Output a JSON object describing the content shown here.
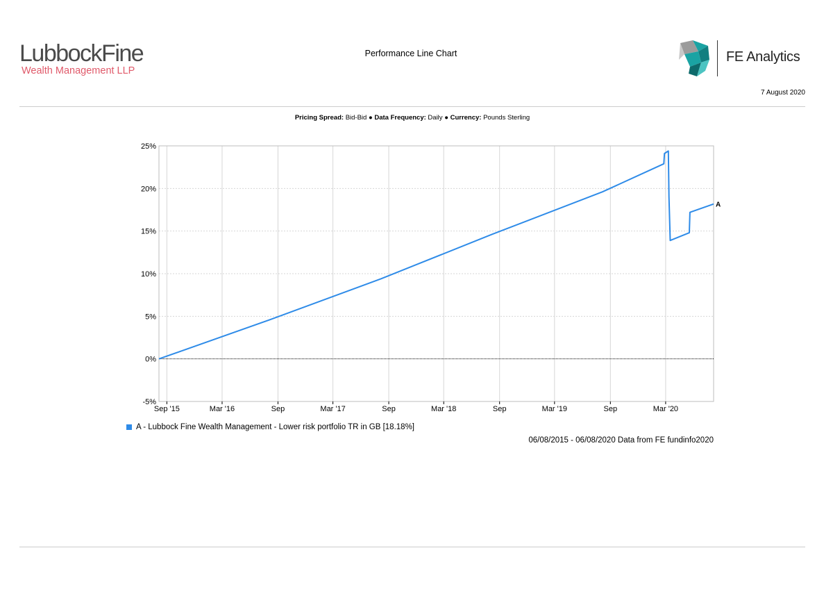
{
  "header": {
    "brand_main": "LubbockFine",
    "brand_sub": "Wealth Management LLP",
    "page_title": "Performance Line Chart",
    "provider": "FE Analytics",
    "date": "7 August 2020"
  },
  "meta": {
    "pricing_spread_label": "Pricing Spread:",
    "pricing_spread_value": "Bid-Bid",
    "data_frequency_label": "Data Frequency:",
    "data_frequency_value": "Daily",
    "currency_label": "Currency:",
    "currency_value": "Pounds Sterling",
    "separator": "●"
  },
  "legend": {
    "label": "A - Lubbock Fine Wealth Management - Lower risk portfolio TR in GB [18.18%]"
  },
  "source": "06/08/2015 - 06/08/2020 Data from FE fundinfo2020",
  "colors": {
    "series": "#2e8be8",
    "brand_red": "#e05a6a",
    "fe_teal": "#1aa3a3"
  },
  "chart_data": {
    "type": "line",
    "title": "",
    "xlabel": "",
    "ylabel": "",
    "ylim": [
      -5,
      25
    ],
    "xlim": [
      "2015-08-06",
      "2020-08-06"
    ],
    "yticks": [
      "25%",
      "20%",
      "15%",
      "10%",
      "5%",
      "0%",
      "-5%"
    ],
    "ytick_values": [
      25,
      20,
      15,
      10,
      5,
      0,
      -5
    ],
    "xticks": [
      {
        "label": "Sep '15",
        "date": "2015-09-01"
      },
      {
        "label": "Mar '16",
        "date": "2016-03-01"
      },
      {
        "label": "Sep",
        "date": "2016-09-01"
      },
      {
        "label": "Mar '17",
        "date": "2017-03-01"
      },
      {
        "label": "Sep",
        "date": "2017-09-01"
      },
      {
        "label": "Mar '18",
        "date": "2018-03-01"
      },
      {
        "label": "Sep",
        "date": "2018-09-01"
      },
      {
        "label": "Mar '19",
        "date": "2019-03-01"
      },
      {
        "label": "Sep",
        "date": "2019-09-01"
      },
      {
        "label": "Mar '20",
        "date": "2020-03-01"
      }
    ],
    "grid": true,
    "series": [
      {
        "name": "A",
        "end_label": "A",
        "points": [
          {
            "x": "2015-08-06",
            "y": 0.0
          },
          {
            "x": "2016-08-06",
            "y": 4.6
          },
          {
            "x": "2017-08-06",
            "y": 9.4
          },
          {
            "x": "2018-08-06",
            "y": 14.6
          },
          {
            "x": "2019-08-06",
            "y": 19.6
          },
          {
            "x": "2020-02-24",
            "y": 22.9
          },
          {
            "x": "2020-02-26",
            "y": 24.1
          },
          {
            "x": "2020-03-10",
            "y": 24.4
          },
          {
            "x": "2020-03-12",
            "y": 19.0
          },
          {
            "x": "2020-03-16",
            "y": 13.9
          },
          {
            "x": "2020-05-18",
            "y": 14.8
          },
          {
            "x": "2020-05-20",
            "y": 17.2
          },
          {
            "x": "2020-08-06",
            "y": 18.18
          }
        ]
      }
    ]
  }
}
